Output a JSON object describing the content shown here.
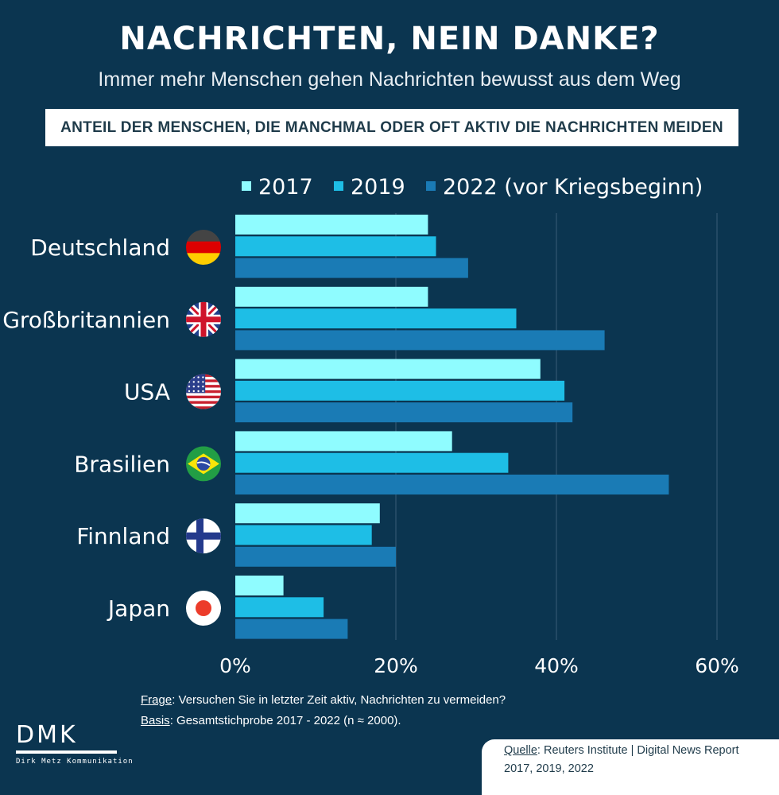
{
  "header": {
    "title": "NACHRICHTEN, NEIN DANKE?",
    "subtitle": "Immer mehr Menschen gehen Nachrichten bewusst aus dem Weg",
    "banner": "ANTEIL DER MENSCHEN, DIE MANCHMAL ODER OFT AKTIV DIE NACHRICHTEN MEIDEN"
  },
  "chart_data": {
    "type": "bar",
    "orientation": "horizontal",
    "categories": [
      "Deutschland",
      "Großbritannien",
      "USA",
      "Brasilien",
      "Finnland",
      "Japan"
    ],
    "flags": [
      "germany-flag-icon",
      "uk-flag-icon",
      "usa-flag-icon",
      "brazil-flag-icon",
      "finland-flag-icon",
      "japan-flag-icon"
    ],
    "series": [
      {
        "name": "2017",
        "color": "#8ffcff",
        "values": [
          24,
          24,
          38,
          27,
          18,
          6
        ]
      },
      {
        "name": "2019",
        "color": "#1ebee6",
        "values": [
          25,
          35,
          41,
          34,
          17,
          11
        ]
      },
      {
        "name": "2022 (vor Kriegsbeginn)",
        "color": "#1a7bb5",
        "values": [
          29,
          46,
          42,
          54,
          20,
          14
        ]
      }
    ],
    "xlim": [
      0,
      60
    ],
    "xticks": [
      "0%",
      "20%",
      "40%",
      "60%"
    ],
    "xtick_values": [
      0,
      20,
      40,
      60
    ],
    "grid": true,
    "legend": "top"
  },
  "footnotes": {
    "frage_key": "Frage",
    "frage_text": ": Versuchen Sie in letzter Zeit aktiv, Nachrichten zu vermeiden?",
    "basis_key": "Basis",
    "basis_text": ": Gesamtstichprobe 2017 - 2022 (n ≈ 2000)."
  },
  "logo": {
    "word": "DMK",
    "sub": "Dirk Metz Kommunikation"
  },
  "source": {
    "key": "Quelle",
    "line1": ": Reuters Institute | Digital News Report",
    "line2": "2017, 2019, 2022"
  }
}
